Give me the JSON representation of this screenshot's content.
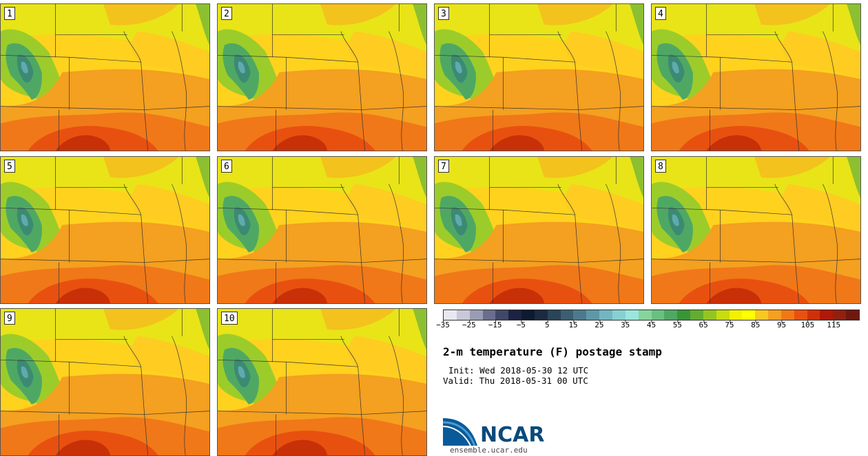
{
  "stamps": [
    {
      "label": "1"
    },
    {
      "label": "2"
    },
    {
      "label": "3"
    },
    {
      "label": "4"
    },
    {
      "label": "5"
    },
    {
      "label": "6"
    },
    {
      "label": "7"
    },
    {
      "label": "8"
    },
    {
      "label": "9"
    },
    {
      "label": "10"
    }
  ],
  "colorbar": {
    "colors": [
      "#e8e8f0",
      "#c8c8d8",
      "#9a9cb4",
      "#6a6e8c",
      "#404868",
      "#1c2240",
      "#0e1a30",
      "#1c2a40",
      "#2a4458",
      "#3c5e72",
      "#4c7a8c",
      "#5e98a8",
      "#72b6c0",
      "#86d0d0",
      "#9ae6dc",
      "#86d49c",
      "#6ac080",
      "#4ea864",
      "#3a9438",
      "#62ac30",
      "#94c420",
      "#c8dc10",
      "#f4f000",
      "#ffff00",
      "#f8c820",
      "#f4a020",
      "#f07818",
      "#e85010",
      "#d03008",
      "#b01808",
      "#902010",
      "#701810"
    ],
    "ticks": [
      "−35",
      "−25",
      "−15",
      "−5",
      "5",
      "15",
      "25",
      "35",
      "45",
      "55",
      "65",
      "75",
      "85",
      "95",
      "105",
      "115"
    ]
  },
  "title": "2-m temperature (F) postage stamp",
  "init": "Init: Wed 2018-05-30 12 UTC",
  "valid": "Valid: Thu 2018-05-31 00 UTC",
  "logo": {
    "text": "NCAR",
    "url": "ensemble.ucar.edu"
  }
}
